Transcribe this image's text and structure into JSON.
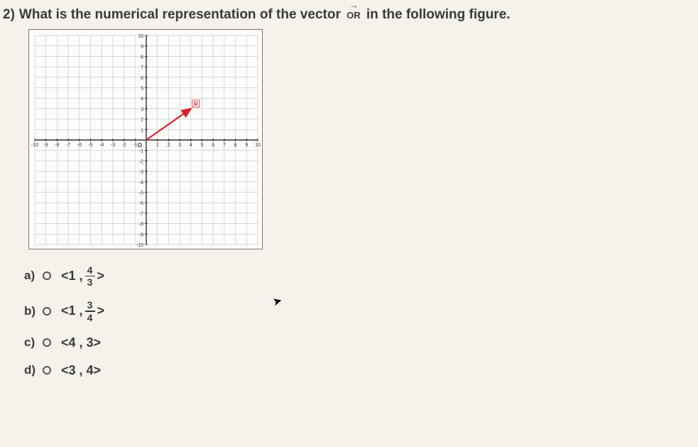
{
  "question": {
    "number": "2)",
    "text_before": "What is the numerical representation of the vector",
    "vector_label": "OR",
    "text_after": "in the following figure."
  },
  "graph": {
    "type": "cartesian-grid",
    "background_color": "#fdfcfa",
    "grid_color": "#8a8a8a",
    "axis_color": "#333333",
    "xlim": [
      -10,
      10
    ],
    "ylim": [
      -10,
      10
    ],
    "tick_step": 1,
    "tick_label_color": "#333333",
    "tick_fontsize": 7,
    "vector": {
      "from": [
        0,
        0
      ],
      "to": [
        4,
        3
      ],
      "color": "#d4212a",
      "width": 2.2,
      "label": "R",
      "label_color": "#d4212a"
    }
  },
  "answers": {
    "a": {
      "label": "a)",
      "prefix": "<1 ,",
      "frac_top": "4",
      "frac_bot": "3",
      "suffix": ">"
    },
    "b": {
      "label": "b)",
      "prefix": "<1 ,",
      "frac_top": "3",
      "frac_bot": "4",
      "suffix": ">"
    },
    "c": {
      "label": "c)",
      "text": "<4 , 3>"
    },
    "d": {
      "label": "d)",
      "text": "<3 , 4>"
    }
  }
}
